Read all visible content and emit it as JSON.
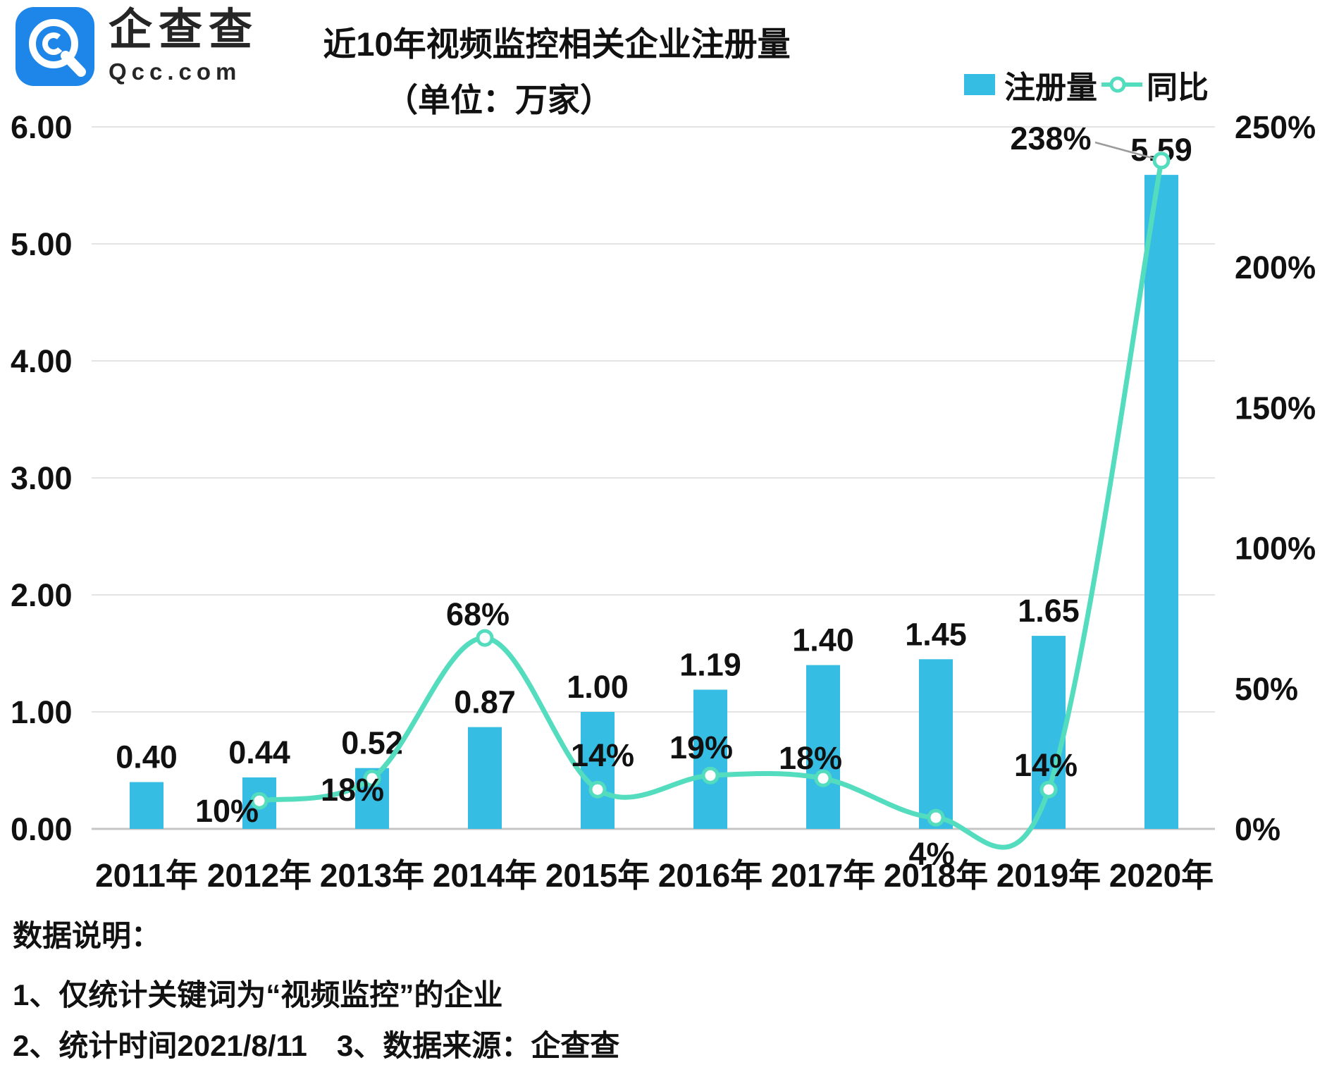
{
  "header": {
    "logo": {
      "brand": "企查查",
      "domain": "Qcc.com"
    },
    "title_line1": "近10年视频监控相关企业注册量",
    "title_line2": "（单位：万家）"
  },
  "legend": {
    "bar_label": "注册量",
    "line_label": "同比"
  },
  "chart_data": {
    "type": "bar+line",
    "title": "近10年视频监控相关企业注册量",
    "unit": "万家",
    "categories": [
      "2011年",
      "2012年",
      "2013年",
      "2014年",
      "2015年",
      "2016年",
      "2017年",
      "2018年",
      "2019年",
      "2020年"
    ],
    "series": [
      {
        "name": "注册量",
        "type": "bar",
        "axis": "left",
        "values": [
          0.4,
          0.44,
          0.52,
          0.87,
          1.0,
          1.19,
          1.4,
          1.45,
          1.65,
          5.59
        ],
        "value_labels": [
          "0.40",
          "0.44",
          "0.52",
          "0.87",
          "1.00",
          "1.19",
          "1.40",
          "1.45",
          "1.65",
          "5.59"
        ]
      },
      {
        "name": "同比",
        "type": "line",
        "axis": "right",
        "values": [
          null,
          10,
          18,
          68,
          14,
          19,
          18,
          4,
          14,
          238
        ],
        "value_labels": [
          "",
          "10%",
          "18%",
          "68%",
          "14%",
          "19%",
          "18%",
          "4%",
          "14%",
          "238%"
        ]
      }
    ],
    "left_axis": {
      "min": 0,
      "max": 6,
      "ticks": [
        "6.00",
        "5.00",
        "4.00",
        "3.00",
        "2.00",
        "1.00",
        "0.00"
      ]
    },
    "right_axis": {
      "min": 0,
      "max": 250,
      "ticks": [
        "250%",
        "200%",
        "150%",
        "100%",
        "50%",
        "0%"
      ]
    },
    "grid": "horizontal",
    "legend_position": "top-right",
    "annotation": {
      "category": "2020年",
      "text": "238%",
      "style": "leader-line"
    }
  },
  "colors": {
    "bar": "#36bde3",
    "line": "#53dcbe",
    "grid": "#e4e4e4",
    "axis_line": "#c6c6c6",
    "text": "#111111",
    "logo_blue": "#1e86e8",
    "leader": "#9b9b9b"
  },
  "footer": {
    "heading": "数据说明：",
    "note1": "1、仅统计关键词为“视频监控”的企业",
    "note2": "2、统计时间2021/8/11　3、数据来源：企查查"
  }
}
